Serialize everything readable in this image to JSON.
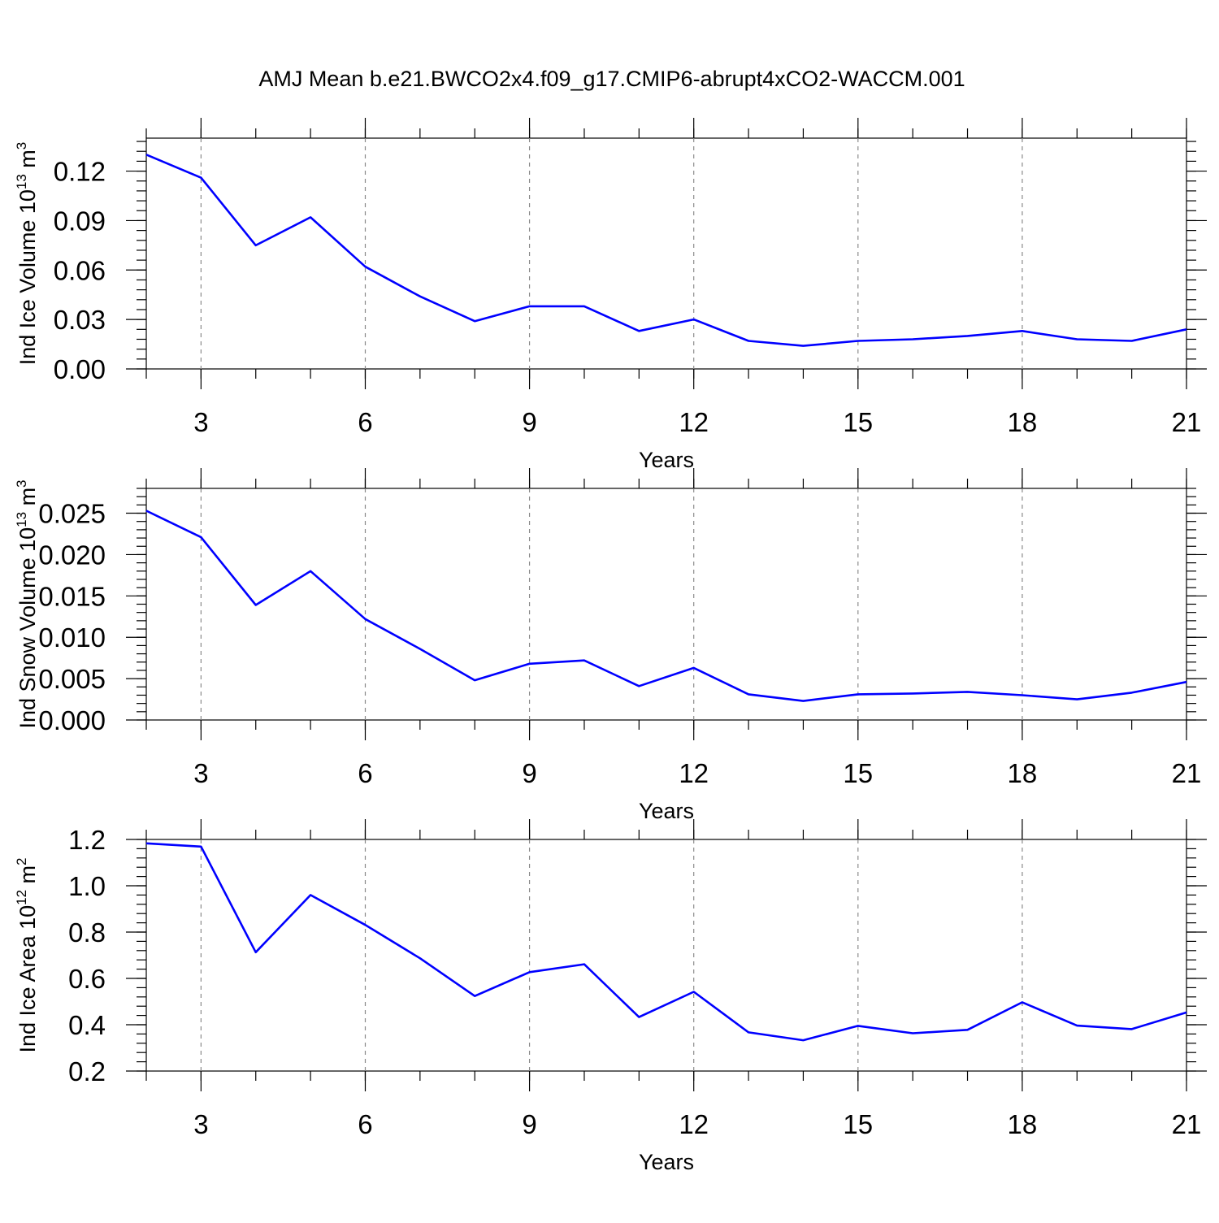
{
  "title": "AMJ Mean b.e21.BWCO2x4.f09_g17.CMIP6-abrupt4xCO2-WACCM.001",
  "colors": {
    "series": "#0000ff",
    "axes": "#000000",
    "grid": "#8a8a8a"
  },
  "chart_data": [
    {
      "type": "line",
      "xlabel": "Years",
      "ylabel": {
        "text": "Ind Ice Volume 10",
        "exponent": "13",
        "unit": " m",
        "unit_exponent": "3"
      },
      "xlim": [
        2,
        21
      ],
      "ylim": [
        0,
        0.14
      ],
      "xticks": [
        3,
        6,
        9,
        12,
        15,
        18,
        21
      ],
      "xtick_labels": [
        "3",
        "6",
        "9",
        "12",
        "15",
        "18",
        "21"
      ],
      "yticks": [
        0,
        0.03,
        0.06,
        0.09,
        0.12
      ],
      "ytick_labels": [
        "0.00",
        "0.03",
        "0.06",
        "0.09",
        "0.12"
      ],
      "y_minor_step": 0.006,
      "grid": "x-dashed",
      "x": [
        2,
        3,
        4,
        5,
        6,
        7,
        8,
        9,
        10,
        11,
        12,
        13,
        14,
        15,
        16,
        17,
        18,
        19,
        20,
        21
      ],
      "values": [
        0.13,
        0.116,
        0.075,
        0.092,
        0.062,
        0.044,
        0.029,
        0.038,
        0.038,
        0.023,
        0.03,
        0.017,
        0.014,
        0.017,
        0.018,
        0.02,
        0.023,
        0.018,
        0.017,
        0.024
      ]
    },
    {
      "type": "line",
      "xlabel": "Years",
      "ylabel": {
        "text": "Ind Snow Volume 10",
        "exponent": "13",
        "unit": " m",
        "unit_exponent": "3"
      },
      "xlim": [
        2,
        21
      ],
      "ylim": [
        0,
        0.028
      ],
      "xticks": [
        3,
        6,
        9,
        12,
        15,
        18,
        21
      ],
      "xtick_labels": [
        "3",
        "6",
        "9",
        "12",
        "15",
        "18",
        "21"
      ],
      "yticks": [
        0,
        0.005,
        0.01,
        0.015,
        0.02,
        0.025
      ],
      "ytick_labels": [
        "0.000",
        "0.005",
        "0.010",
        "0.015",
        "0.020",
        "0.025"
      ],
      "y_minor_step": 0.001,
      "grid": "x-dashed",
      "x": [
        2,
        3,
        4,
        5,
        6,
        7,
        8,
        9,
        10,
        11,
        12,
        13,
        14,
        15,
        16,
        17,
        18,
        19,
        20,
        21
      ],
      "values": [
        0.0253,
        0.0221,
        0.0139,
        0.018,
        0.0122,
        0.0086,
        0.0048,
        0.0068,
        0.0072,
        0.0041,
        0.0063,
        0.0031,
        0.0023,
        0.0031,
        0.0032,
        0.0034,
        0.003,
        0.0025,
        0.0033,
        0.0046
      ]
    },
    {
      "type": "line",
      "xlabel": "Years",
      "ylabel": {
        "text": "Ind Ice Area 10",
        "exponent": "12",
        "unit": " m",
        "unit_exponent": "2"
      },
      "xlim": [
        2,
        21
      ],
      "ylim": [
        0.2,
        1.2
      ],
      "xticks": [
        3,
        6,
        9,
        12,
        15,
        18,
        21
      ],
      "xtick_labels": [
        "3",
        "6",
        "9",
        "12",
        "15",
        "18",
        "21"
      ],
      "yticks": [
        0.2,
        0.4,
        0.6,
        0.8,
        1.0,
        1.2
      ],
      "ytick_labels": [
        "0.2",
        "0.4",
        "0.6",
        "0.8",
        "1.0",
        "1.2"
      ],
      "y_minor_step": 0.04,
      "grid": "x-dashed",
      "x": [
        2,
        3,
        4,
        5,
        6,
        7,
        8,
        9,
        10,
        11,
        12,
        13,
        14,
        15,
        16,
        17,
        18,
        19,
        20,
        21
      ],
      "values": [
        1.183,
        1.169,
        0.713,
        0.96,
        0.831,
        0.687,
        0.524,
        0.627,
        0.661,
        0.433,
        0.542,
        0.367,
        0.333,
        0.395,
        0.363,
        0.378,
        0.497,
        0.396,
        0.381,
        0.453
      ]
    }
  ]
}
